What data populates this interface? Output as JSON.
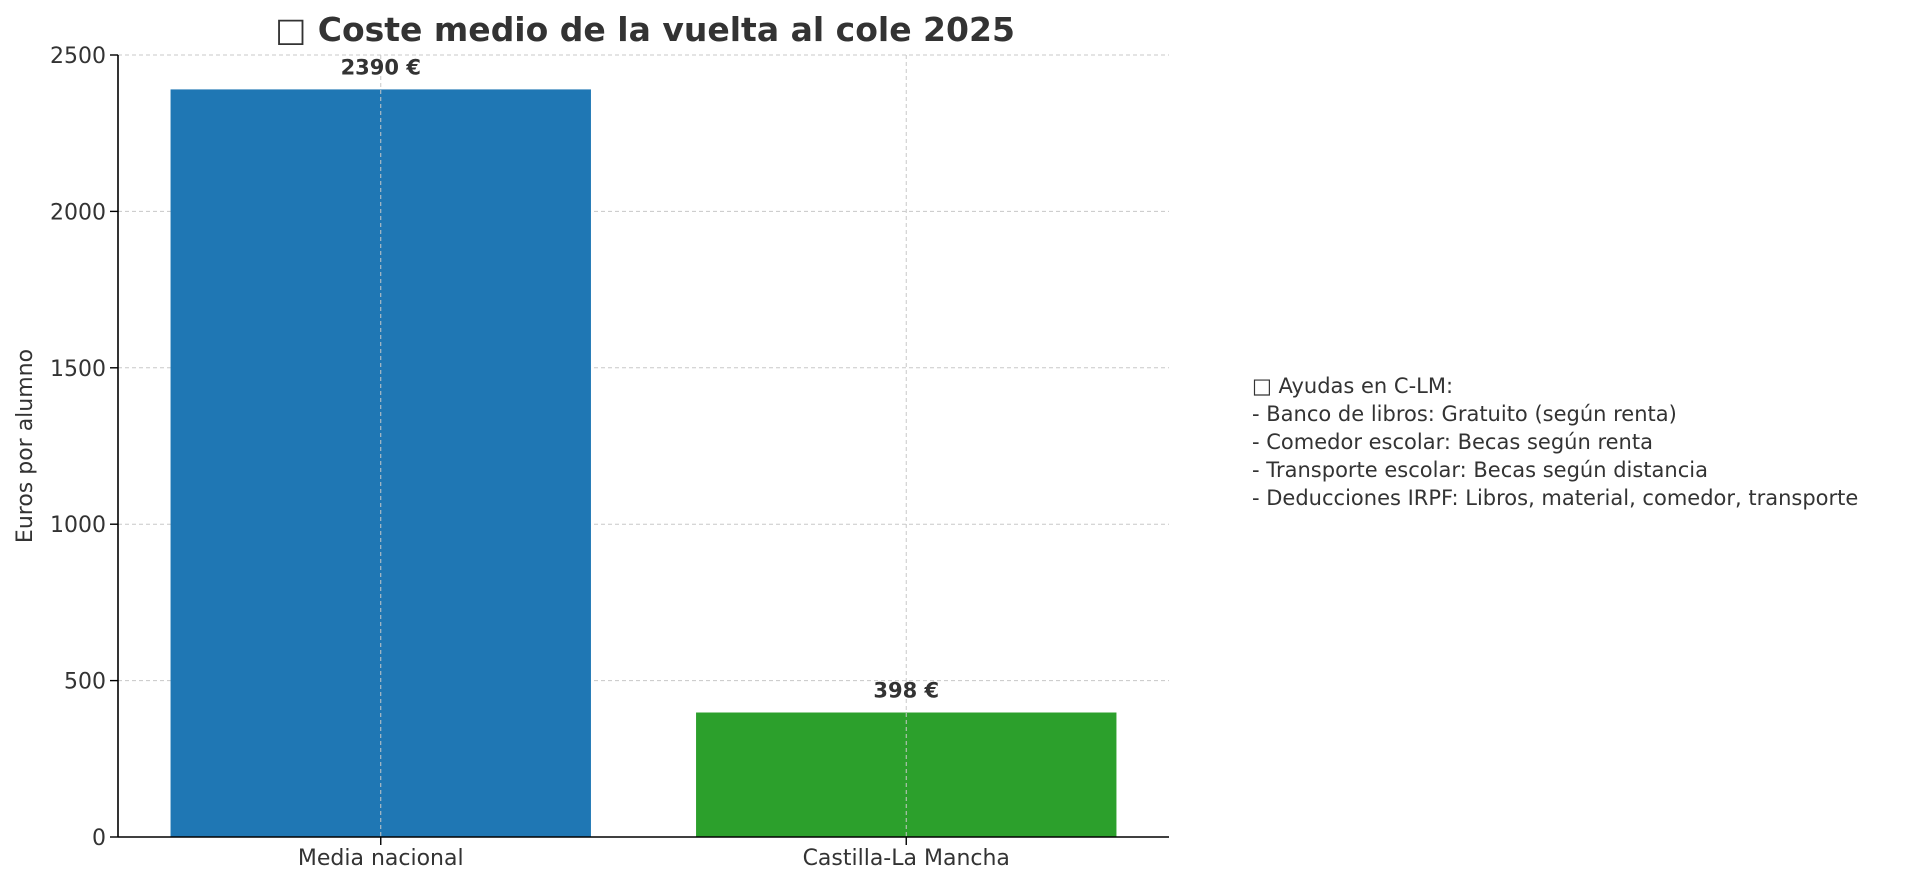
{
  "chart_data": {
    "type": "bar",
    "title": "□ Coste medio de la vuelta al cole 2025",
    "xlabel": "",
    "ylabel": "Euros por alumno",
    "categories": [
      "Media nacional",
      "Castilla-La Mancha"
    ],
    "values": [
      2390,
      398
    ],
    "value_labels": [
      "2390 €",
      "398 €"
    ],
    "bar_colors": [
      "#1f77b4",
      "#2ca02c"
    ],
    "ylim": [
      0,
      2500
    ],
    "yticks": [
      0,
      500,
      1000,
      1500,
      2000,
      2500
    ],
    "ytick_labels": [
      "0",
      "500",
      "1000",
      "1500",
      "2000",
      "2500"
    ],
    "grid": true,
    "legend": "none"
  },
  "annotation": {
    "lines": [
      "□ Ayudas en C-LM:",
      "- Banco de libros: Gratuito (según renta)",
      "- Comedor escolar: Becas según renta",
      "- Transporte escolar: Becas según distancia",
      "- Deducciones IRPF: Libros, material, comedor, transporte"
    ]
  },
  "colors": {
    "text": "#333333",
    "grid": "#c8c8c8",
    "axis": "#000000"
  }
}
